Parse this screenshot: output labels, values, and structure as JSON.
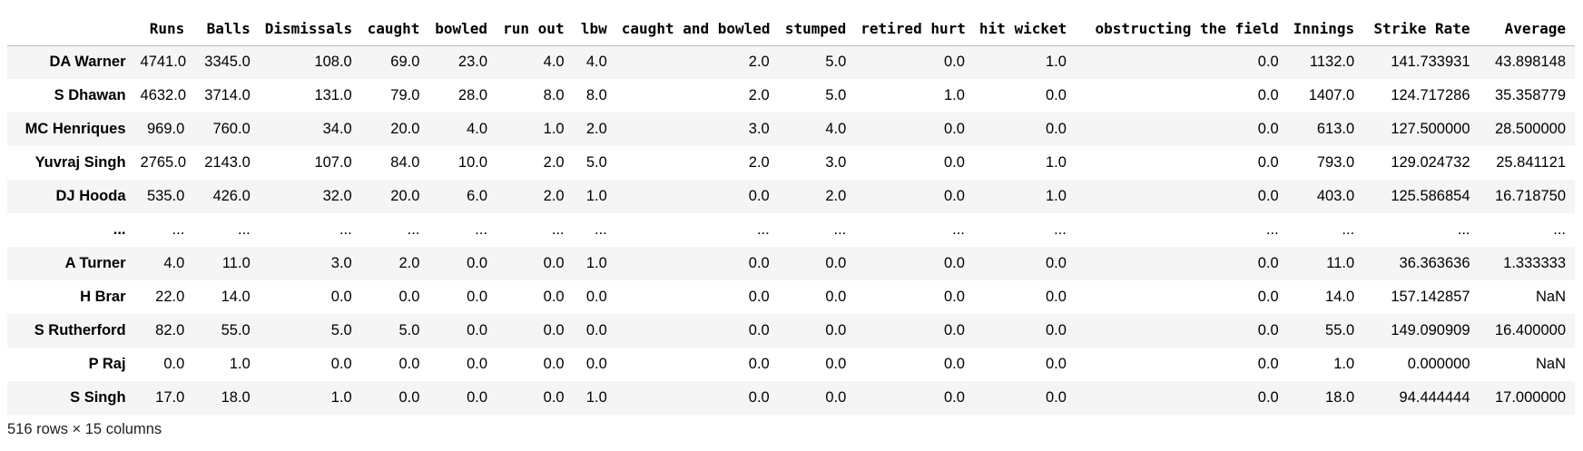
{
  "table": {
    "columns": [
      "",
      "Runs",
      "Balls",
      "Dismissals",
      "caught",
      "bowled",
      "run out",
      "lbw",
      "caught and bowled",
      "stumped",
      "retired hurt",
      "hit wicket",
      "obstructing the field",
      "Innings",
      "Strike Rate",
      "Average"
    ],
    "rows": [
      [
        "DA Warner",
        "4741.0",
        "3345.0",
        "108.0",
        "69.0",
        "23.0",
        "4.0",
        "4.0",
        "2.0",
        "5.0",
        "0.0",
        "1.0",
        "0.0",
        "1132.0",
        "141.733931",
        "43.898148"
      ],
      [
        "S Dhawan",
        "4632.0",
        "3714.0",
        "131.0",
        "79.0",
        "28.0",
        "8.0",
        "8.0",
        "2.0",
        "5.0",
        "1.0",
        "0.0",
        "0.0",
        "1407.0",
        "124.717286",
        "35.358779"
      ],
      [
        "MC Henriques",
        "969.0",
        "760.0",
        "34.0",
        "20.0",
        "4.0",
        "1.0",
        "2.0",
        "3.0",
        "4.0",
        "0.0",
        "0.0",
        "0.0",
        "613.0",
        "127.500000",
        "28.500000"
      ],
      [
        "Yuvraj Singh",
        "2765.0",
        "2143.0",
        "107.0",
        "84.0",
        "10.0",
        "2.0",
        "5.0",
        "2.0",
        "3.0",
        "0.0",
        "1.0",
        "0.0",
        "793.0",
        "129.024732",
        "25.841121"
      ],
      [
        "DJ Hooda",
        "535.0",
        "426.0",
        "32.0",
        "20.0",
        "6.0",
        "2.0",
        "1.0",
        "0.0",
        "2.0",
        "0.0",
        "1.0",
        "0.0",
        "403.0",
        "125.586854",
        "16.718750"
      ],
      [
        "...",
        "...",
        "...",
        "...",
        "...",
        "...",
        "...",
        "...",
        "...",
        "...",
        "...",
        "...",
        "...",
        "...",
        "...",
        "..."
      ],
      [
        "A Turner",
        "4.0",
        "11.0",
        "3.0",
        "2.0",
        "0.0",
        "0.0",
        "1.0",
        "0.0",
        "0.0",
        "0.0",
        "0.0",
        "0.0",
        "11.0",
        "36.363636",
        "1.333333"
      ],
      [
        "H Brar",
        "22.0",
        "14.0",
        "0.0",
        "0.0",
        "0.0",
        "0.0",
        "0.0",
        "0.0",
        "0.0",
        "0.0",
        "0.0",
        "0.0",
        "14.0",
        "157.142857",
        "NaN"
      ],
      [
        "S Rutherford",
        "82.0",
        "55.0",
        "5.0",
        "5.0",
        "0.0",
        "0.0",
        "0.0",
        "0.0",
        "0.0",
        "0.0",
        "0.0",
        "0.0",
        "55.0",
        "149.090909",
        "16.400000"
      ],
      [
        "P Raj",
        "0.0",
        "1.0",
        "0.0",
        "0.0",
        "0.0",
        "0.0",
        "0.0",
        "0.0",
        "0.0",
        "0.0",
        "0.0",
        "0.0",
        "1.0",
        "0.000000",
        "NaN"
      ],
      [
        "S Singh",
        "17.0",
        "18.0",
        "1.0",
        "0.0",
        "0.0",
        "0.0",
        "1.0",
        "0.0",
        "0.0",
        "0.0",
        "0.0",
        "0.0",
        "18.0",
        "94.444444",
        "17.000000"
      ]
    ]
  },
  "shape_text": "516 rows × 15 columns"
}
